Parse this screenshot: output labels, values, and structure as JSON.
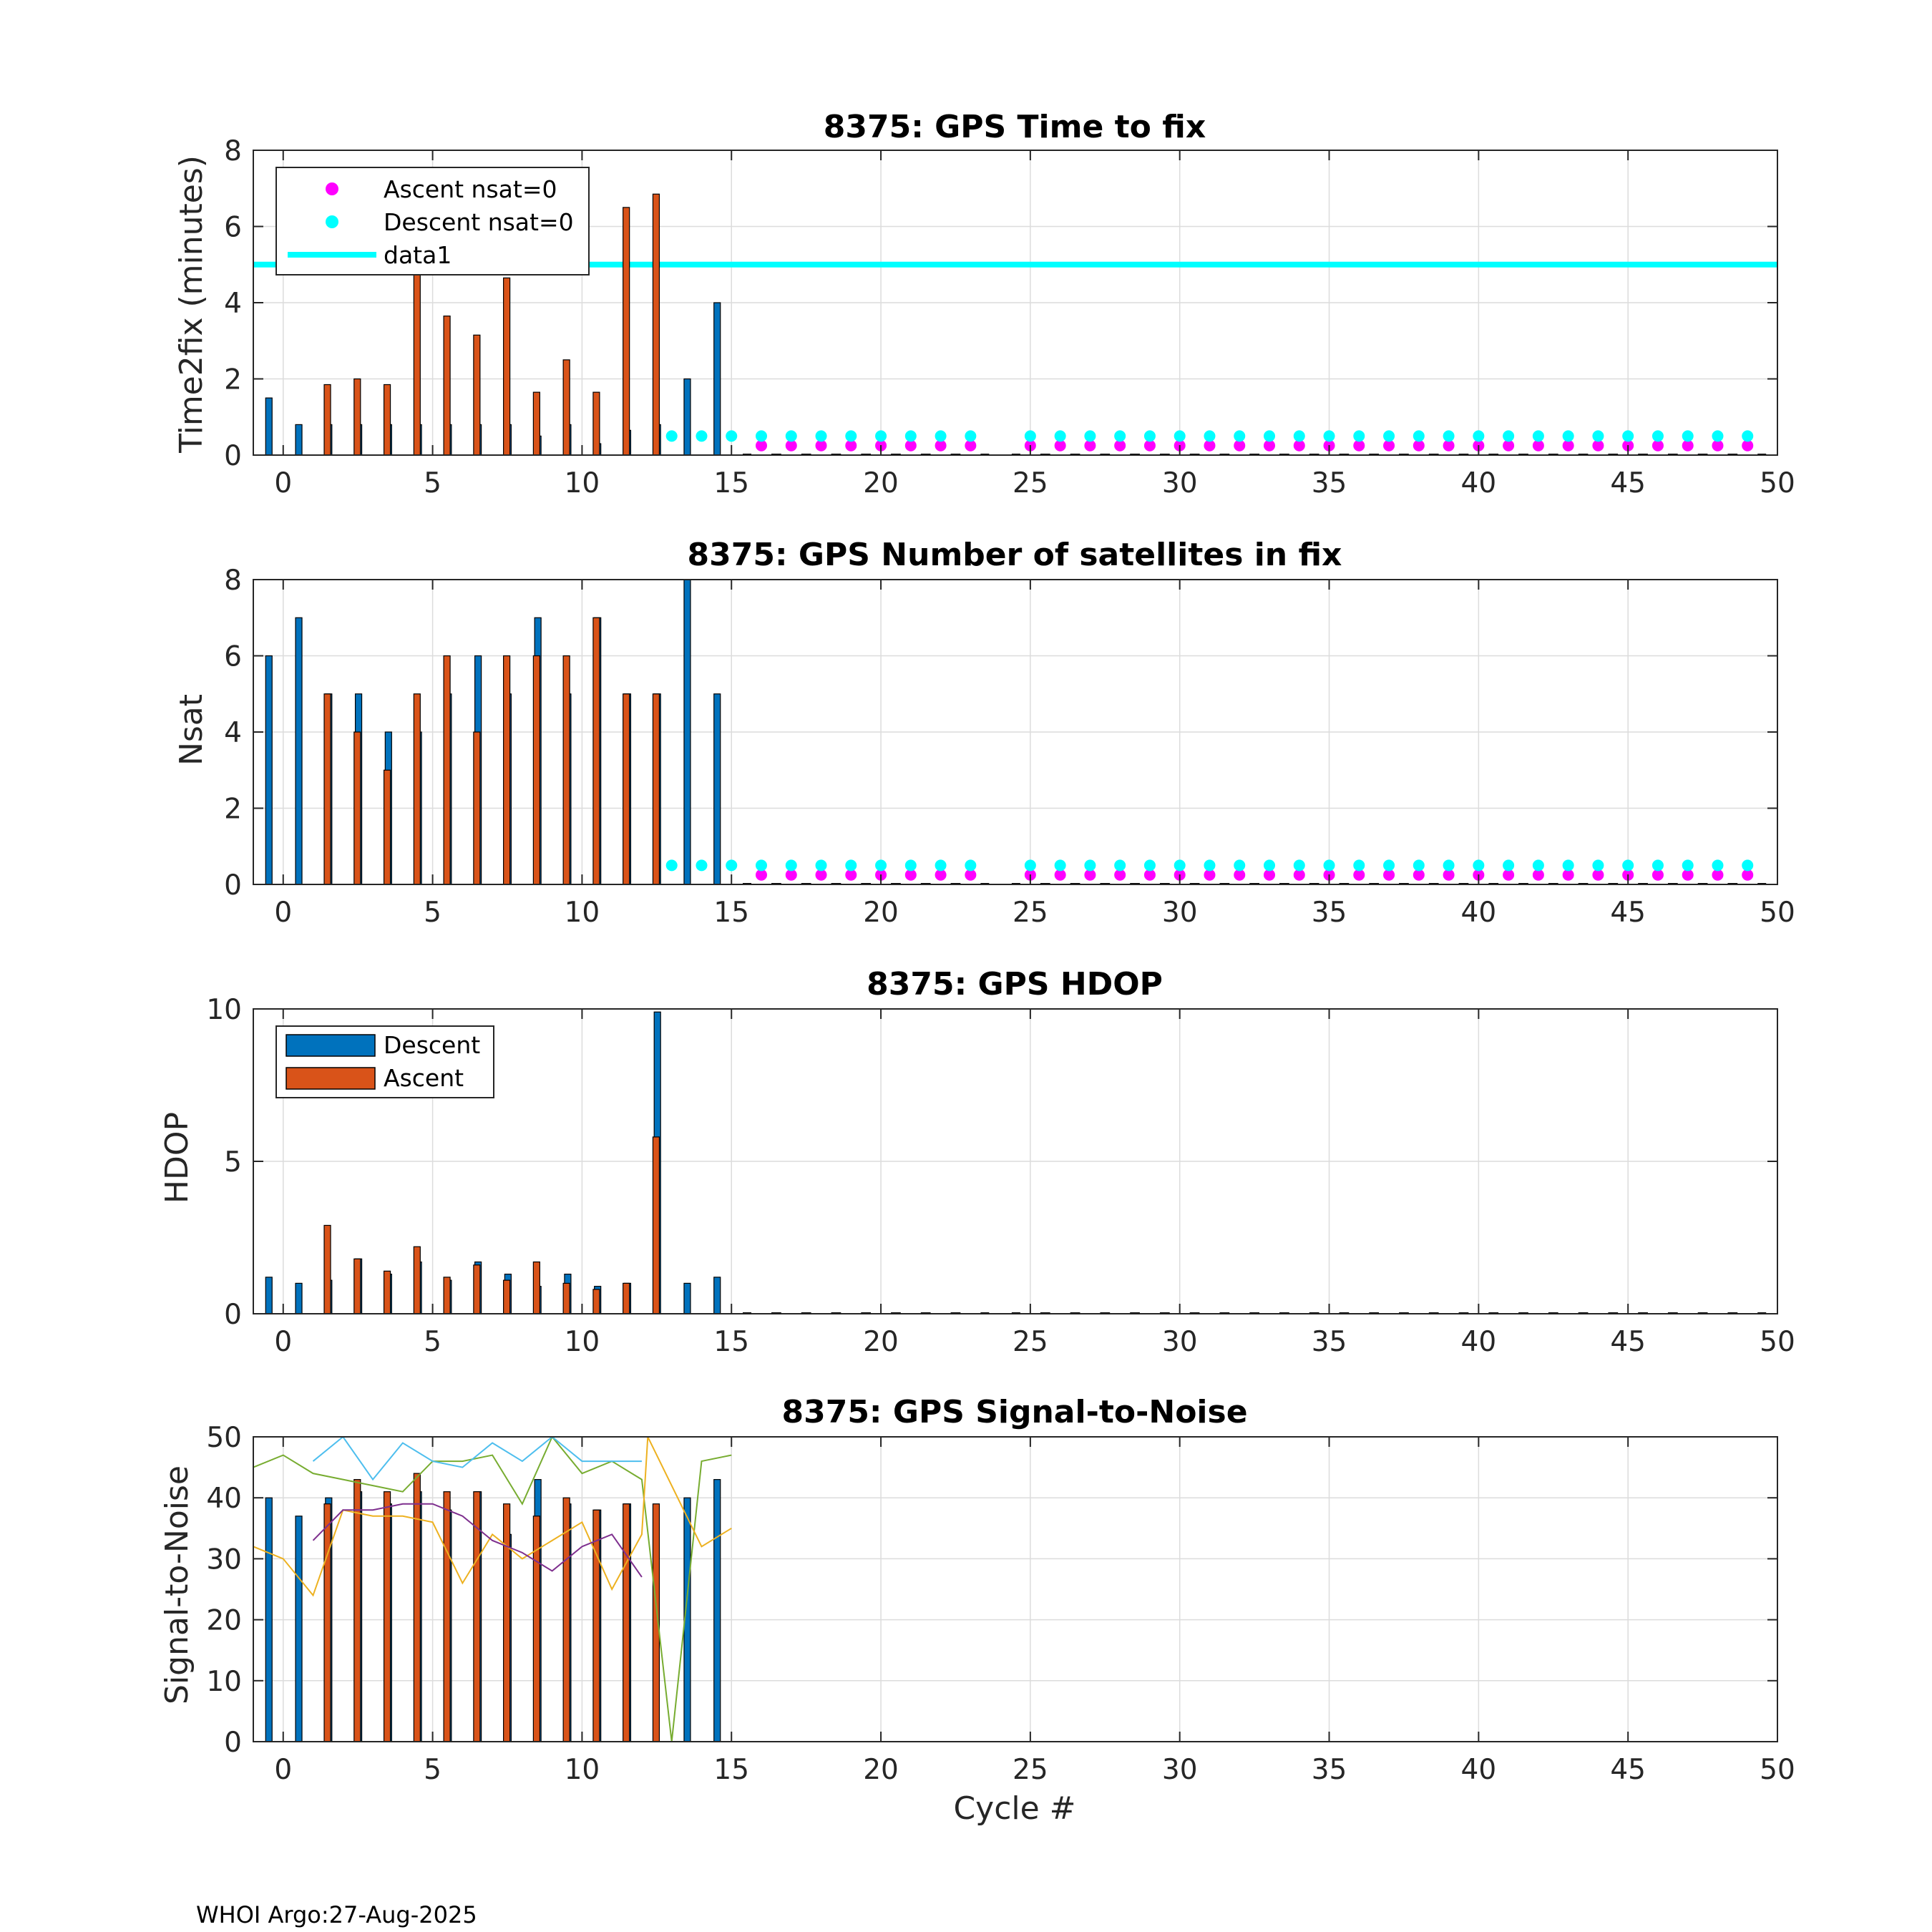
{
  "figure": {
    "footer": "WHOI Argo:27-Aug-2025",
    "xlabel": "Cycle #"
  },
  "colors": {
    "descent": "#0072BD",
    "ascent": "#D95319",
    "magenta": "#FF00FF",
    "cyan": "#00FFFF",
    "grid": "#dcdcdc"
  },
  "chart_data": [
    {
      "type": "bar",
      "title": "8375: GPS Time to fix",
      "ylabel": "Time2fix (minutes)",
      "xlim": [
        -1,
        50
      ],
      "ylim": [
        0,
        8
      ],
      "xticks": [
        0,
        5,
        10,
        15,
        20,
        25,
        30,
        35,
        40,
        45,
        50
      ],
      "yticks": [
        0,
        2,
        4,
        6,
        8
      ],
      "series": [
        {
          "name": "Descent",
          "x": [
            0,
            1,
            2,
            3,
            4,
            5,
            6,
            7,
            8,
            9,
            10,
            11,
            12,
            13,
            14,
            15
          ],
          "values": [
            1.5,
            0.8,
            0.8,
            0.8,
            0.8,
            0.8,
            0.8,
            0.8,
            0.8,
            0.5,
            0.8,
            0.3,
            0.65,
            0.8,
            2.0,
            4.0
          ]
        },
        {
          "name": "Ascent",
          "x": [
            1,
            2,
            3,
            4,
            5,
            6,
            7,
            8,
            9,
            10,
            11,
            12
          ],
          "values": [
            1.85,
            2.0,
            1.85,
            4.85,
            3.65,
            3.15,
            4.65,
            1.65,
            2.5,
            1.65,
            6.5,
            6.85
          ]
        }
      ],
      "markers": [
        {
          "name": "Ascent nsat=0",
          "color": "magenta",
          "y": 0.25,
          "x": [
            16,
            17,
            18,
            19,
            20,
            21,
            22,
            23,
            25,
            26,
            27,
            28,
            29,
            30,
            31,
            32,
            33,
            34,
            35,
            36,
            37,
            38,
            39,
            40,
            41,
            42,
            43,
            44,
            45,
            46,
            47,
            48,
            49
          ]
        },
        {
          "name": "Descent nsat=0",
          "color": "cyan",
          "y": 0.5,
          "x": [
            13,
            14,
            15,
            16,
            17,
            18,
            19,
            20,
            21,
            22,
            23,
            25,
            26,
            27,
            28,
            29,
            30,
            31,
            32,
            33,
            34,
            35,
            36,
            37,
            38,
            39,
            40,
            41,
            42,
            43,
            44,
            45,
            46,
            47,
            48,
            49
          ]
        }
      ],
      "hline": {
        "name": "data1",
        "y": 5
      },
      "legend": {
        "location": "top-left",
        "entries": [
          "Ascent nsat=0",
          "Descent nsat=0",
          "data1"
        ]
      }
    },
    {
      "type": "bar",
      "title": "8375: GPS Number of satellites in fix",
      "ylabel": "Nsat",
      "xlim": [
        -1,
        50
      ],
      "ylim": [
        0,
        8
      ],
      "xticks": [
        0,
        5,
        10,
        15,
        20,
        25,
        30,
        35,
        40,
        45,
        50
      ],
      "yticks": [
        0,
        2,
        4,
        6,
        8
      ],
      "series": [
        {
          "name": "Descent",
          "x": [
            0,
            1,
            2,
            3,
            4,
            5,
            6,
            7,
            8,
            9,
            10,
            11,
            12,
            13,
            14,
            15
          ],
          "values": [
            6,
            7,
            5,
            5,
            4,
            4,
            5,
            6,
            5,
            7,
            5,
            7,
            5,
            5,
            8,
            5
          ]
        },
        {
          "name": "Ascent",
          "x": [
            1,
            2,
            3,
            4,
            5,
            6,
            7,
            8,
            9,
            10,
            11,
            12
          ],
          "values": [
            5,
            4,
            3,
            5,
            6,
            4,
            6,
            6,
            6,
            7,
            5,
            5
          ]
        }
      ],
      "markers": [
        {
          "name": "Ascent nsat=0",
          "color": "magenta",
          "y": 0.25,
          "x": [
            16,
            17,
            18,
            19,
            20,
            21,
            22,
            23,
            25,
            26,
            27,
            28,
            29,
            30,
            31,
            32,
            33,
            34,
            35,
            36,
            37,
            38,
            39,
            40,
            41,
            42,
            43,
            44,
            45,
            46,
            47,
            48,
            49
          ]
        },
        {
          "name": "Descent nsat=0",
          "color": "cyan",
          "y": 0.5,
          "x": [
            13,
            14,
            15,
            16,
            17,
            18,
            19,
            20,
            21,
            22,
            23,
            25,
            26,
            27,
            28,
            29,
            30,
            31,
            32,
            33,
            34,
            35,
            36,
            37,
            38,
            39,
            40,
            41,
            42,
            43,
            44,
            45,
            46,
            47,
            48,
            49
          ]
        }
      ]
    },
    {
      "type": "bar",
      "title": "8375: GPS HDOP",
      "ylabel": "HDOP",
      "xlim": [
        -1,
        50
      ],
      "ylim": [
        0,
        10
      ],
      "xticks": [
        0,
        5,
        10,
        15,
        20,
        25,
        30,
        35,
        40,
        45,
        50
      ],
      "yticks": [
        0,
        5,
        10
      ],
      "series": [
        {
          "name": "Descent",
          "x": [
            0,
            1,
            2,
            3,
            4,
            5,
            6,
            7,
            8,
            9,
            10,
            11,
            12,
            13,
            14,
            15
          ],
          "values": [
            1.2,
            1.0,
            1.1,
            1.8,
            1.3,
            1.7,
            1.1,
            1.7,
            1.3,
            0.9,
            1.3,
            0.9,
            1.0,
            9.9,
            1.0,
            1.2
          ]
        },
        {
          "name": "Ascent",
          "x": [
            1,
            2,
            3,
            4,
            5,
            6,
            7,
            8,
            9,
            10,
            11,
            12
          ],
          "values": [
            2.9,
            1.8,
            1.4,
            2.2,
            1.2,
            1.6,
            1.1,
            1.7,
            1.0,
            0.8,
            1.0,
            5.8
          ]
        }
      ],
      "legend": {
        "location": "top-left",
        "entries": [
          "Descent",
          "Ascent"
        ]
      }
    },
    {
      "type": "bar",
      "title": "8375: GPS Signal-to-Noise",
      "ylabel": "Signal-to-Noise",
      "xlabel": "Cycle #",
      "xlim": [
        -1,
        50
      ],
      "ylim": [
        0,
        50
      ],
      "xticks": [
        0,
        5,
        10,
        15,
        20,
        25,
        30,
        35,
        40,
        45,
        50
      ],
      "yticks": [
        0,
        10,
        20,
        30,
        40,
        50
      ],
      "series": [
        {
          "name": "Descent",
          "x": [
            0,
            1,
            2,
            3,
            4,
            5,
            6,
            7,
            8,
            9,
            10,
            11,
            12,
            14,
            15
          ],
          "values": [
            40,
            37,
            40,
            41,
            39,
            41,
            38,
            41,
            34,
            43,
            39,
            38,
            39,
            40,
            43
          ]
        },
        {
          "name": "Ascent",
          "x": [
            1,
            2,
            3,
            4,
            5,
            6,
            7,
            8,
            9,
            10,
            11,
            12
          ],
          "values": [
            39,
            43,
            41,
            44,
            41,
            41,
            39,
            37,
            40,
            38,
            39,
            39
          ]
        }
      ],
      "lines": [
        {
          "name": "sn-green",
          "color": "#77AC30",
          "x": [
            -1,
            0,
            1,
            2,
            3,
            4,
            5,
            6,
            7,
            8,
            9,
            10,
            11,
            12,
            13,
            14,
            15
          ],
          "values": [
            45,
            47,
            44,
            43,
            42,
            41,
            46,
            46,
            47,
            39,
            50,
            44,
            46,
            43,
            0,
            46,
            47
          ]
        },
        {
          "name": "sn-lightblue",
          "color": "#4DBEEE",
          "x": [
            1,
            2,
            3,
            4,
            5,
            6,
            7,
            8,
            9,
            10,
            11,
            12
          ],
          "values": [
            46,
            50,
            43,
            49,
            46,
            45,
            49,
            46,
            50,
            46,
            46,
            46
          ]
        },
        {
          "name": "sn-yellow",
          "color": "#EDB120",
          "x": [
            -1,
            0,
            1,
            2,
            3,
            4,
            5,
            6,
            7,
            8,
            9,
            10,
            11,
            12,
            12.2,
            14,
            15
          ],
          "values": [
            32,
            30,
            24,
            38,
            37,
            37,
            36,
            26,
            34,
            30,
            33,
            36,
            25,
            34,
            50,
            32,
            35
          ]
        },
        {
          "name": "sn-purple",
          "color": "#7E2F8E",
          "x": [
            1,
            2,
            3,
            4,
            5,
            6,
            7,
            8,
            9,
            10,
            11,
            12
          ],
          "values": [
            33,
            38,
            38,
            39,
            39,
            37,
            33,
            31,
            28,
            32,
            34,
            27
          ]
        }
      ]
    }
  ]
}
